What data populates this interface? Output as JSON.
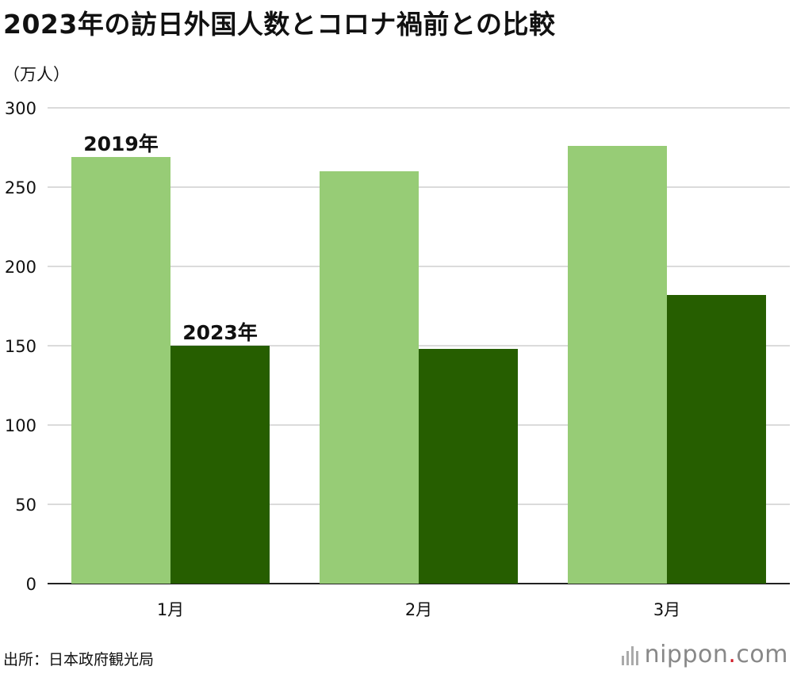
{
  "title": "2023年の訪日外国人数とコロナ禍前との比較",
  "unit_label": "（万人）",
  "source": "出所：日本政府観光局",
  "brand": {
    "name_left": "nippon",
    "dot": ".",
    "name_right": "com"
  },
  "colors": {
    "series_2019": "#97cc76",
    "series_2023": "#265e00",
    "grid": "#cfcfcf",
    "axis": "#222222"
  },
  "chart_data": {
    "type": "bar",
    "title": "2023年の訪日外国人数とコロナ禍前との比較",
    "ylabel": "（万人）",
    "xlabel": "",
    "categories": [
      "1月",
      "2月",
      "3月"
    ],
    "ylim": [
      0,
      300
    ],
    "yticks": [
      0,
      50,
      100,
      150,
      200,
      250,
      300
    ],
    "grid": true,
    "series": [
      {
        "name": "2019年",
        "values": [
          269,
          260,
          276
        ]
      },
      {
        "name": "2023年",
        "values": [
          150,
          148,
          182
        ]
      }
    ]
  }
}
